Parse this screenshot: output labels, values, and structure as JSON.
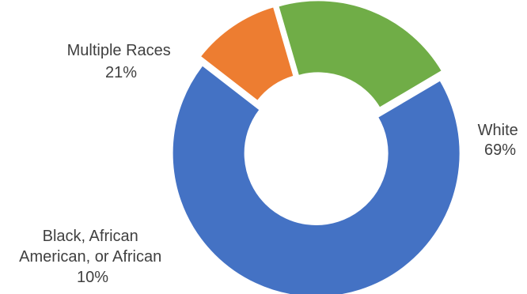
{
  "chart_data": {
    "type": "pie",
    "variant": "donut-exploded",
    "title": "",
    "slices": [
      {
        "label_lines": [
          "White"
        ],
        "percent_label": "69%",
        "value": 69,
        "color": "#4472C4"
      },
      {
        "label_lines": [
          "Black, African",
          "American, or African"
        ],
        "percent_label": "10%",
        "value": 10,
        "color": "#ED7D31"
      },
      {
        "label_lines": [
          "Multiple Races"
        ],
        "percent_label": "21%",
        "value": 21,
        "color": "#70AD47"
      }
    ],
    "legend": "none"
  }
}
